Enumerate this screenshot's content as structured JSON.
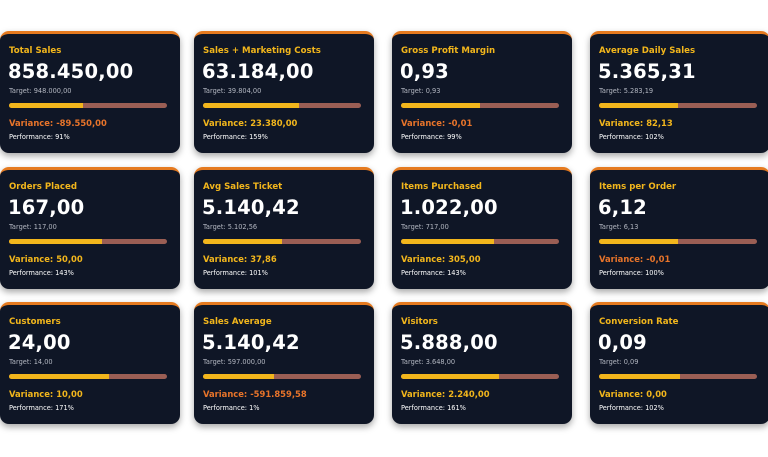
{
  "colors": {
    "card_bg": "#0f1626",
    "card_top_border": "#e57a1f",
    "title": "#f2b61c",
    "bar_fill": "#f2b61c",
    "bar_track": "#9a5e54",
    "variance_positive": "#f2b61c",
    "variance_negative": "#e8742a"
  },
  "cards": [
    {
      "title": "Total Sales",
      "value": "858.450,00",
      "target": "Target: 948.000,00",
      "variance": "Variance: -89.550,00",
      "variance_negative": true,
      "performance": "Performance: 91%",
      "bar_fraction": 0.47
    },
    {
      "title": "Sales + Marketing Costs",
      "value": "63.184,00",
      "target": "Target: 39.804,00",
      "variance": "Variance: 23.380,00",
      "variance_negative": false,
      "performance": "Performance: 159%",
      "bar_fraction": 0.61
    },
    {
      "title": "Gross Profit Margin",
      "value": "0,93",
      "target": "Target: 0,93",
      "variance": "Variance: -0,01",
      "variance_negative": true,
      "performance": "Performance: 99%",
      "bar_fraction": 0.5
    },
    {
      "title": "Average Daily Sales",
      "value": "5.365,31",
      "target": "Target: 5.283,19",
      "variance": "Variance: 82,13",
      "variance_negative": false,
      "performance": "Performance: 102%",
      "bar_fraction": 0.5
    },
    {
      "title": "Orders Placed",
      "value": "167,00",
      "target": "Target: 117,00",
      "variance": "Variance: 50,00",
      "variance_negative": false,
      "performance": "Performance: 143%",
      "bar_fraction": 0.59
    },
    {
      "title": "Avg Sales Ticket",
      "value": "5.140,42",
      "target": "Target: 5.102,56",
      "variance": "Variance: 37,86",
      "variance_negative": false,
      "performance": "Performance: 101%",
      "bar_fraction": 0.5
    },
    {
      "title": "Items Purchased",
      "value": "1.022,00",
      "target": "Target: 717,00",
      "variance": "Variance: 305,00",
      "variance_negative": false,
      "performance": "Performance: 143%",
      "bar_fraction": 0.59
    },
    {
      "title": "Items per Order",
      "value": "6,12",
      "target": "Target: 6,13",
      "variance": "Variance: -0,01",
      "variance_negative": true,
      "performance": "Performance: 100%",
      "bar_fraction": 0.5
    },
    {
      "title": "Customers",
      "value": "24,00",
      "target": "Target: 14,00",
      "variance": "Variance: 10,00",
      "variance_negative": false,
      "performance": "Performance: 171%",
      "bar_fraction": 0.63
    },
    {
      "title": "Sales Average",
      "value": "5.140,42",
      "target": "Target: 597.000,00",
      "variance": "Variance: -591.859,58",
      "variance_negative": true,
      "performance": "Performance: 1%",
      "bar_fraction": 0.45
    },
    {
      "title": "Visitors",
      "value": "5.888,00",
      "target": "Target: 3.648,00",
      "variance": "Variance: 2.240,00",
      "variance_negative": false,
      "performance": "Performance: 161%",
      "bar_fraction": 0.62
    },
    {
      "title": "Conversion Rate",
      "value": "0,09",
      "target": "Target: 0,09",
      "variance": "Variance: 0,00",
      "variance_negative": false,
      "performance": "Performance: 102%",
      "bar_fraction": 0.51
    }
  ]
}
